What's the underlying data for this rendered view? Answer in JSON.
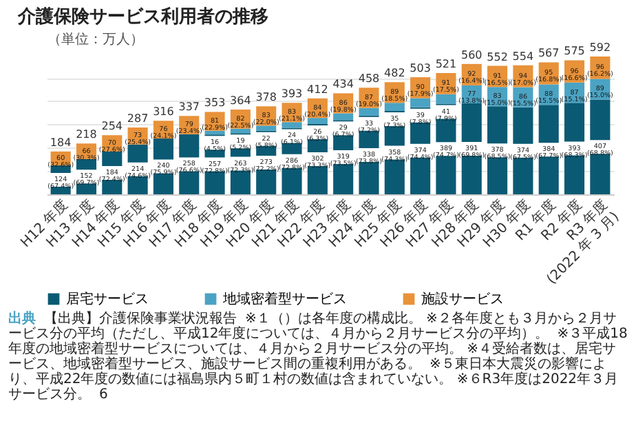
{
  "chart_data": {
    "type": "bar",
    "stacked": true,
    "title": "介護保険サービス利用者の推移",
    "ylabel": "（単位：万人）",
    "categories": [
      "H12 年度",
      "H13 年度",
      "H14 年度",
      "H15 年度",
      "H16 年度",
      "H17 年度",
      "H18 年度",
      "H19 年度",
      "H20 年度",
      "H21 年度",
      "H22 年度",
      "H23 年度",
      "H24 年度",
      "H25 年度",
      "H26 年度",
      "H27 年度",
      "H28 年度",
      "H29 年度",
      "H30 年度",
      "R1 年度",
      "R2 年度",
      "R3 年度 (2022 年 3 月)"
    ],
    "series": [
      {
        "name": "居宅サービス",
        "color": "#0b5a73",
        "values": [
          124,
          152,
          184,
          214,
          240,
          258,
          257,
          263,
          273,
          286,
          302,
          319,
          338,
          358,
          374,
          389,
          391,
          378,
          374,
          384,
          393,
          407
        ],
        "value_labels": [
          "124 (67.4%)",
          "152 (69.7%)",
          "184 (72.4%)",
          "214 (74.6%)",
          "240 (75.9%)",
          "258 (76.6%)",
          "257 (72.8%)",
          "263 (72.3%)",
          "273 (72.2%)",
          "286 (72.8%)",
          "302 (73.3%)",
          "319 (73.5%)",
          "338 (73.8%)",
          "358 (74.3%)",
          "374 (74.4%)",
          "389 (74.7%)",
          "391 (69.8%)",
          "378 (68.5%)",
          "374 (67.5%)",
          "384 (67.7%)",
          "393 (68.3%)",
          "407 (68.8%)"
        ]
      },
      {
        "name": "地域密着型サービス",
        "color": "#4ba3c3",
        "values": [
          null,
          null,
          null,
          null,
          null,
          null,
          16,
          19,
          22,
          24,
          26,
          29,
          33,
          35,
          39,
          41,
          77,
          83,
          86,
          88,
          87,
          89
        ],
        "value_labels": [
          null,
          null,
          null,
          null,
          null,
          null,
          "16 (4.5%)",
          "19 (5.2%)",
          "22 (5.8%)",
          "24 (6.1%)",
          "26 (6.3%)",
          "29 (6.7%)",
          "33 (7.2%)",
          "35 (7.3%)",
          "39 (7.8%)",
          "41 (7.9%)",
          "77 (13.8%)",
          "83 (15.0%)",
          "86 (15.5%)",
          "88 (15.5%)",
          "87 (15.1%)",
          "89 (15.0%)"
        ]
      },
      {
        "name": "施設サービス",
        "color": "#e8923a",
        "values": [
          60,
          66,
          70,
          73,
          76,
          79,
          81,
          82,
          83,
          83,
          84,
          86,
          87,
          89,
          90,
          91,
          92,
          91,
          94,
          95,
          96,
          96
        ],
        "value_labels": [
          "60 (32.6%)",
          "66 (30.3%)",
          "70 (27.6%)",
          "73 (25.4%)",
          "76 (24.1%)",
          "79 (23.4%)",
          "81 (22.9%)",
          "82 (22.5%)",
          "83 (22.0%)",
          "83 (21.1%)",
          "84 (20.4%)",
          "86 (19.8%)",
          "87 (19.0%)",
          "89 (18.5%)",
          "90 (17.9%)",
          "91 (17.5%)",
          "92 (16.4%)",
          "91 (16.5%)",
          "94 (17.0%)",
          "95 (16.8%)",
          "96 (16.6%)",
          "96 (16.2%)"
        ]
      }
    ],
    "totals": [
      "184",
      "218",
      "254",
      "287",
      "316",
      "337",
      "353",
      "364",
      "378",
      "393",
      "412",
      "434",
      "458",
      "482",
      "503",
      "521",
      "560",
      "552",
      "554",
      "567",
      "575",
      "592"
    ],
    "grid": "y",
    "tick_labels": "x",
    "legend": "bottom",
    "annotations": [
      "出典",
      "【出典】介護保険事業状況報告",
      "※１（）は各年度の構成比。 ※２各年度とも３月から２月サービス分の平均（ただし、平成12年度については、４月から２月サービス分の平均）。",
      "※３平成18年度の地域密着型サービスについては、４月から２月サービス分の平均。 ※４受給者数は、居宅サービス、地域密着型サービス、施設サービス間の重複利用がある。",
      "※５東日本大震災の影響により、平成22年度の数値には福島県内５町１村の数値は含まれていない。 ※６R3年度は2022年３月サービス分。",
      "6"
    ]
  }
}
